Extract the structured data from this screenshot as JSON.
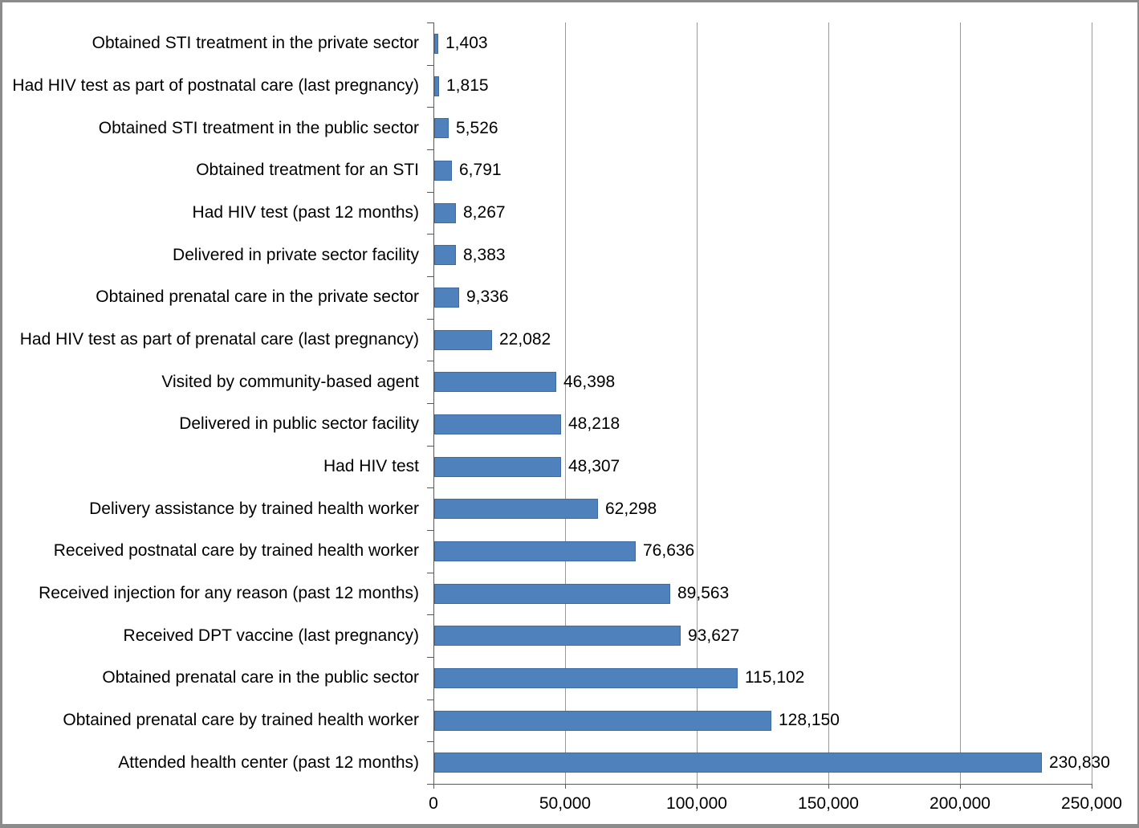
{
  "chart_data": {
    "type": "bar",
    "orientation": "horizontal",
    "title": "",
    "xlabel": "",
    "ylabel": "",
    "grid": "vertical",
    "legend": "none",
    "xlim": [
      0,
      250000
    ],
    "categories": [
      "Obtained STI treatment in the private sector",
      "Had HIV test as part of postnatal care (last pregnancy)",
      "Obtained STI treatment in the public sector",
      "Obtained treatment for an STI",
      "Had HIV test (past 12 months)",
      "Delivered in private sector facility",
      "Obtained prenatal care in the private sector",
      "Had HIV test as part of prenatal care (last pregnancy)",
      "Visited by community-based agent",
      "Delivered in public sector facility",
      "Had HIV test",
      "Delivery assistance by trained health worker",
      "Received postnatal care by trained health worker",
      "Received injection for any reason (past 12 months)",
      "Received DPT vaccine (last pregnancy)",
      "Obtained prenatal care in the public sector",
      "Obtained prenatal care by trained health worker",
      "Attended health center (past 12 months)"
    ],
    "values": [
      1403,
      1815,
      5526,
      6791,
      8267,
      8383,
      9336,
      22082,
      46398,
      48218,
      48307,
      62298,
      76636,
      89563,
      93627,
      115102,
      128150,
      230830
    ],
    "value_labels": [
      "1,403",
      "1,815",
      "5,526",
      "6,791",
      "8,267",
      "8,383",
      "9,336",
      "22,082",
      "46,398",
      "48,218",
      "48,307",
      "62,298",
      "76,636",
      "89,563",
      "93,627",
      "115,102",
      "128,150",
      "230,830"
    ],
    "x_ticks": [
      {
        "value": 0,
        "label": "0"
      },
      {
        "value": 50000,
        "label": "50,000"
      },
      {
        "value": 100000,
        "label": "100,000"
      },
      {
        "value": 150000,
        "label": "150,000"
      },
      {
        "value": 200000,
        "label": "200,000"
      },
      {
        "value": 250000,
        "label": "250,000"
      }
    ],
    "bar_color": "#4f81bd",
    "bar_border_color": "#3e6ba5",
    "gridline_color": "#999999",
    "axis_color": "#595959",
    "text_color": "#000000",
    "background_color": "#ffffff",
    "frame_color": "#8b8b8b"
  }
}
